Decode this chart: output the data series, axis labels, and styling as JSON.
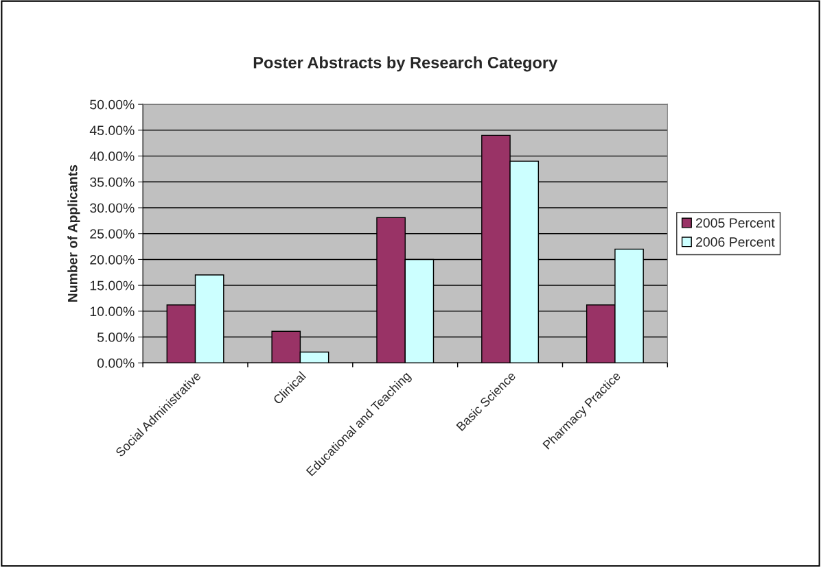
{
  "chart_data": {
    "type": "bar",
    "title": "Poster Abstracts by Research Category",
    "ylabel": "Number of Applicants",
    "categories": [
      "Social Administrative",
      "Clinical",
      "Educational and Teaching",
      "Basic Science",
      "Pharmacy Practice"
    ],
    "series": [
      {
        "name": "2005 Percent",
        "color": "#993366",
        "values": [
          11.2,
          6.1,
          28.1,
          44,
          11.2
        ]
      },
      {
        "name": "2006 Percent",
        "color": "#ccffff",
        "values": [
          17,
          2.1,
          20,
          39,
          22
        ]
      }
    ],
    "ylim": [
      0,
      50
    ],
    "yticks": [
      {
        "value": 0,
        "label": "0.00%"
      },
      {
        "value": 5,
        "label": "5.00%"
      },
      {
        "value": 10,
        "label": "10.00%"
      },
      {
        "value": 15,
        "label": "15.00%"
      },
      {
        "value": 20,
        "label": "20.00%"
      },
      {
        "value": 25,
        "label": "25.00%"
      },
      {
        "value": 30,
        "label": "30.00%"
      },
      {
        "value": 35,
        "label": "35.00%"
      },
      {
        "value": 40,
        "label": "40.00%"
      },
      {
        "value": 45,
        "label": "45.00%"
      },
      {
        "value": 50,
        "label": "50.00%"
      }
    ],
    "grid": "y",
    "legend": "right"
  }
}
